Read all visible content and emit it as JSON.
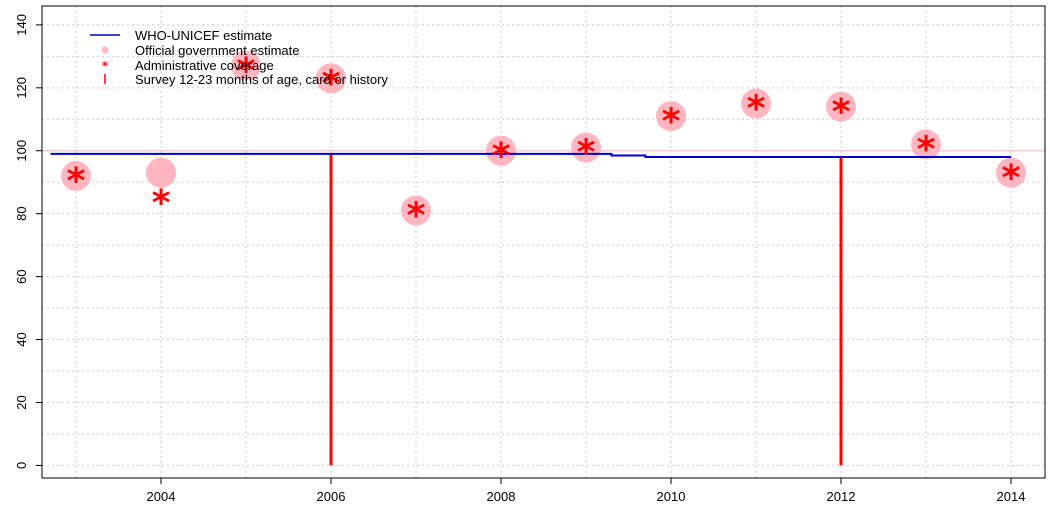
{
  "chart_data": {
    "type": "scatter",
    "title": "",
    "xlabel": "",
    "ylabel": "",
    "xlim": [
      2002.6,
      2014.4
    ],
    "ylim": [
      -4,
      146
    ],
    "x_ticks": [
      2004,
      2006,
      2008,
      2010,
      2012,
      2014
    ],
    "y_ticks": [
      0,
      20,
      40,
      60,
      80,
      100,
      120,
      140
    ],
    "grid": true,
    "legend_position": "top-left",
    "colors": {
      "estimate": "#0000cc",
      "official": "#ffb6c1",
      "administrative": "#ff0000",
      "survey": "#ff0000",
      "reference_line": "#ffb6c1",
      "grid": "#c8c8c8"
    },
    "legend": [
      {
        "key": "estimate",
        "label": "WHO-UNICEF estimate",
        "marker": "line"
      },
      {
        "key": "official",
        "label": "Official government estimate",
        "marker": "dot"
      },
      {
        "key": "administrative",
        "label": "Administrative coverage",
        "marker": "star"
      },
      {
        "key": "survey",
        "label": "Survey 12-23 months of age, card or history",
        "marker": "bar"
      }
    ],
    "reference_line_y": 100,
    "series": [
      {
        "name": "WHO-UNICEF estimate",
        "kind": "step",
        "points": [
          [
            2002.7,
            99
          ],
          [
            2009.3,
            99
          ],
          [
            2009.3,
            98.5
          ],
          [
            2009.7,
            98.5
          ],
          [
            2009.7,
            98
          ],
          [
            2014,
            98
          ]
        ]
      },
      {
        "name": "Official government estimate",
        "kind": "dot",
        "points": [
          [
            2003,
            92
          ],
          [
            2004,
            93
          ],
          [
            2005,
            127
          ],
          [
            2006,
            123
          ],
          [
            2007,
            81
          ],
          [
            2008,
            100
          ],
          [
            2009,
            101
          ],
          [
            2010,
            111
          ],
          [
            2011,
            115
          ],
          [
            2012,
            114
          ],
          [
            2013,
            102
          ],
          [
            2014,
            93
          ]
        ]
      },
      {
        "name": "Administrative coverage",
        "kind": "star",
        "points": [
          [
            2003,
            91
          ],
          [
            2004,
            84
          ],
          [
            2005,
            126
          ],
          [
            2006,
            122
          ],
          [
            2007,
            80
          ],
          [
            2008,
            99
          ],
          [
            2009,
            100
          ],
          [
            2010,
            110
          ],
          [
            2011,
            114
          ],
          [
            2012,
            113
          ],
          [
            2013,
            101
          ],
          [
            2014,
            92
          ]
        ]
      },
      {
        "name": "Survey 12-23 months of age, card or history",
        "kind": "bar",
        "points": [
          [
            2006,
            99
          ],
          [
            2012,
            98
          ]
        ]
      }
    ]
  }
}
